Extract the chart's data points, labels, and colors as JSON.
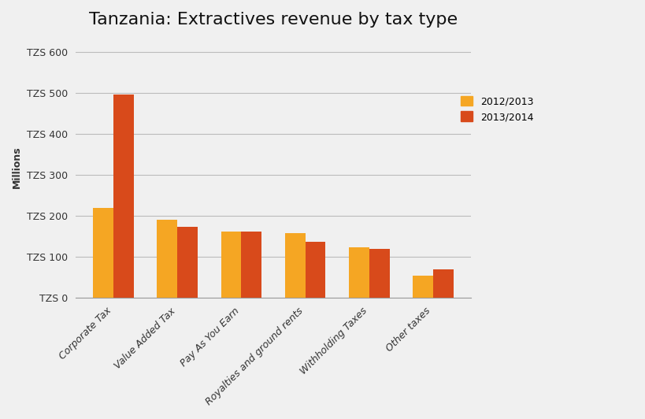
{
  "title": "Tanzania: Extractives revenue by tax type",
  "ylabel": "Millions",
  "categories": [
    "Corporate Tax",
    "Value Added Tax",
    "Pay As You Earn",
    "Royalties and ground rents",
    "Withholding Taxes",
    "Other taxes"
  ],
  "series": {
    "2012/2013": [
      220,
      190,
      163,
      158,
      123,
      55
    ],
    "2013/2014": [
      495,
      173,
      163,
      138,
      120,
      70
    ]
  },
  "color_2012": "#F5A623",
  "color_2013": "#D84A1B",
  "ytick_labels": [
    "TZS 0",
    "TZS 100",
    "TZS 200",
    "TZS 300",
    "TZS 400",
    "TZS 500",
    "TZS 600"
  ],
  "ytick_values": [
    0,
    100,
    200,
    300,
    400,
    500,
    600
  ],
  "ylim": [
    0,
    640
  ],
  "legend_labels": [
    "2012/2013",
    "2013/2014"
  ],
  "title_fontsize": 16,
  "axis_fontsize": 9,
  "tick_fontsize": 9,
  "bar_width": 0.32,
  "grid_color": "#bbbbbb",
  "grid_linewidth": 0.8,
  "bg_light": "#eeeeee",
  "bg_dark": "#dddddd"
}
